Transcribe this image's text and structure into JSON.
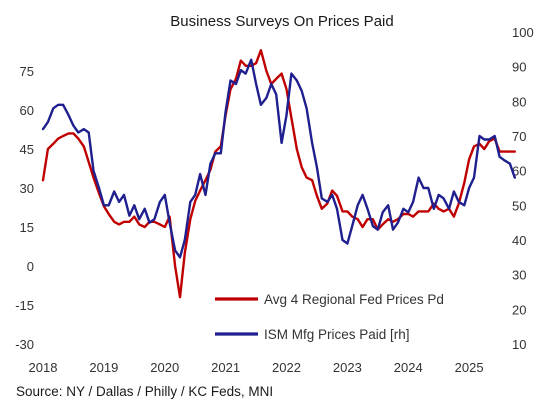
{
  "chart_data": {
    "type": "line",
    "title": "Business Surveys On Prices Paid",
    "source": "Source: NY / Dallas / Philly / KC Feds, MNI",
    "x_ticks": [
      "2018",
      "2019",
      "2020",
      "2021",
      "2022",
      "2023",
      "2024",
      "2025"
    ],
    "left_axis": {
      "ticks": [
        "75",
        "60",
        "45",
        "30",
        "15",
        "0",
        "-15",
        "-30"
      ],
      "ylim": [
        -30,
        90
      ]
    },
    "right_axis": {
      "ticks": [
        "100",
        "90",
        "80",
        "70",
        "60",
        "50",
        "40",
        "30",
        "20",
        "10"
      ],
      "ylim": [
        10,
        100
      ]
    },
    "legend_position": "lower-right",
    "series": [
      {
        "name": "Avg 4 Regional Fed Prices Pd",
        "axis": "left",
        "color": "#c00000",
        "x": [
          2018.0,
          2018.08,
          2018.17,
          2018.25,
          2018.33,
          2018.42,
          2018.5,
          2018.58,
          2018.67,
          2018.75,
          2018.83,
          2018.92,
          2019.0,
          2019.08,
          2019.17,
          2019.25,
          2019.33,
          2019.42,
          2019.5,
          2019.58,
          2019.67,
          2019.75,
          2019.83,
          2019.92,
          2020.0,
          2020.08,
          2020.17,
          2020.25,
          2020.33,
          2020.42,
          2020.5,
          2020.58,
          2020.67,
          2020.75,
          2020.83,
          2020.92,
          2021.0,
          2021.08,
          2021.17,
          2021.25,
          2021.33,
          2021.42,
          2021.5,
          2021.58,
          2021.67,
          2021.75,
          2021.83,
          2021.92,
          2022.0,
          2022.08,
          2022.17,
          2022.25,
          2022.33,
          2022.42,
          2022.5,
          2022.58,
          2022.67,
          2022.75,
          2022.83,
          2022.92,
          2023.0,
          2023.08,
          2023.17,
          2023.25,
          2023.33,
          2023.42,
          2023.5,
          2023.58,
          2023.67,
          2023.75,
          2023.83,
          2023.92,
          2024.0,
          2024.08,
          2024.17,
          2024.25,
          2024.33,
          2024.42,
          2024.5,
          2024.58,
          2024.67,
          2024.75,
          2024.83,
          2024.92,
          2025.0,
          2025.08,
          2025.17,
          2025.25,
          2025.33,
          2025.42,
          2025.5,
          2025.58,
          2025.67,
          2025.75
        ],
        "values": [
          33,
          45,
          47,
          49,
          50,
          51,
          51,
          49,
          46,
          40,
          34,
          28,
          23,
          20,
          17,
          16,
          17,
          17,
          19,
          16,
          15,
          17,
          17,
          16,
          15,
          19,
          0,
          -12,
          5,
          18,
          25,
          29,
          33,
          37,
          44,
          46,
          58,
          68,
          72,
          79,
          77,
          77,
          78,
          83,
          75,
          70,
          72,
          74,
          68,
          57,
          45,
          38,
          34,
          33,
          27,
          22,
          24,
          29,
          27,
          21,
          21,
          19,
          18,
          15,
          18,
          18,
          14,
          16,
          18,
          17,
          18,
          20,
          20,
          19,
          21,
          21,
          21,
          24,
          22,
          21,
          22,
          19,
          24,
          32,
          41,
          46,
          47,
          45,
          48,
          49,
          44,
          44,
          44,
          44
        ]
      },
      {
        "name": "ISM Mfg Prices Paid [rh]",
        "axis": "right",
        "color": "#1f1f8f",
        "x": [
          2018.0,
          2018.08,
          2018.17,
          2018.25,
          2018.33,
          2018.42,
          2018.5,
          2018.58,
          2018.67,
          2018.75,
          2018.83,
          2018.92,
          2019.0,
          2019.08,
          2019.17,
          2019.25,
          2019.33,
          2019.42,
          2019.5,
          2019.58,
          2019.67,
          2019.75,
          2019.83,
          2019.92,
          2020.0,
          2020.08,
          2020.17,
          2020.25,
          2020.33,
          2020.42,
          2020.5,
          2020.58,
          2020.67,
          2020.75,
          2020.83,
          2020.92,
          2021.0,
          2021.08,
          2021.17,
          2021.25,
          2021.33,
          2021.42,
          2021.5,
          2021.58,
          2021.67,
          2021.75,
          2021.83,
          2021.92,
          2022.0,
          2022.08,
          2022.17,
          2022.25,
          2022.33,
          2022.42,
          2022.5,
          2022.58,
          2022.67,
          2022.75,
          2022.83,
          2022.92,
          2023.0,
          2023.08,
          2023.17,
          2023.25,
          2023.33,
          2023.42,
          2023.5,
          2023.58,
          2023.67,
          2023.75,
          2023.83,
          2023.92,
          2024.0,
          2024.08,
          2024.17,
          2024.25,
          2024.33,
          2024.42,
          2024.5,
          2024.58,
          2024.67,
          2024.75,
          2024.83,
          2024.92,
          2025.0,
          2025.08,
          2025.17,
          2025.25,
          2025.33,
          2025.42,
          2025.5,
          2025.58,
          2025.67,
          2025.75
        ],
        "values": [
          72,
          74,
          78,
          79,
          79,
          76,
          73,
          71,
          72,
          71,
          60,
          55,
          50,
          50,
          54,
          51,
          53,
          47,
          50,
          46,
          49,
          45,
          46,
          51,
          53,
          45,
          37,
          35,
          40,
          51,
          53,
          59,
          53,
          62,
          65,
          65,
          77,
          86,
          85,
          89,
          88,
          92,
          85,
          79,
          81,
          85,
          82,
          68,
          76,
          88,
          86,
          83,
          78,
          68,
          61,
          52,
          51,
          53,
          49,
          40,
          39,
          44,
          50,
          53,
          49,
          44,
          43,
          48,
          50,
          43,
          45,
          49,
          48,
          51,
          58,
          55,
          55,
          49,
          53,
          52,
          49,
          54,
          51,
          50,
          55,
          58,
          70,
          69,
          69,
          70,
          64,
          63,
          62,
          58
        ]
      }
    ]
  }
}
